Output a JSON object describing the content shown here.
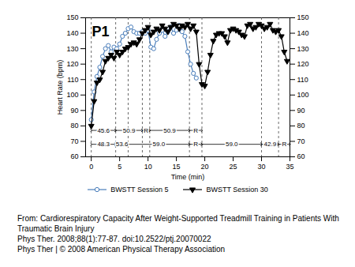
{
  "chart_data": {
    "type": "line",
    "panel_label": "P1",
    "xlabel": "Time (min)",
    "ylabel": "Heart Rate (bpm)",
    "xlim": [
      -1,
      35
    ],
    "xticks": [
      0,
      5,
      10,
      15,
      20,
      25,
      30,
      35
    ],
    "ylim": [
      60,
      150
    ],
    "yticks": [
      60,
      70,
      80,
      90,
      100,
      110,
      120,
      130,
      140,
      150
    ],
    "grid": false,
    "legend": "bottom",
    "series": [
      {
        "name": "BWSTT Session 5",
        "color": "#4a7ebb",
        "marker": "circle",
        "x": [
          0,
          0.5,
          1,
          1.5,
          2,
          2.5,
          3,
          3.5,
          4,
          4.5,
          5,
          5.5,
          6,
          6.5,
          7,
          7.5,
          8,
          8.5,
          9,
          9.5,
          10,
          10.5,
          11,
          11.5,
          12,
          12.5,
          13,
          13.5,
          14,
          14.5,
          15,
          15.5,
          16,
          16.5,
          17,
          17.5,
          18,
          18.5
        ],
        "values": [
          84,
          102,
          112,
          118,
          125,
          130,
          132,
          128,
          131,
          130,
          133,
          138,
          140,
          143,
          144,
          141,
          140,
          140,
          141,
          140,
          142,
          131,
          130,
          136,
          140,
          142,
          138,
          141,
          144,
          140,
          142,
          145,
          141,
          138,
          128,
          120,
          114,
          111
        ]
      },
      {
        "name": "BWSTT Session 30",
        "color": "#000000",
        "marker": "triangle-down",
        "x": [
          0,
          0.5,
          1,
          1.5,
          2,
          2.5,
          3,
          3.5,
          4,
          4.5,
          5,
          5.5,
          6,
          6.5,
          7,
          7.5,
          8,
          8.5,
          9,
          9.5,
          10,
          10.5,
          11,
          11.5,
          12,
          12.5,
          13,
          13.5,
          14,
          14.5,
          15,
          15.5,
          16,
          16.5,
          17,
          17.5,
          18,
          18.5,
          19,
          19.5,
          20,
          20.5,
          21,
          21.5,
          22,
          22.5,
          23,
          23.5,
          24,
          24.5,
          25,
          25.5,
          26,
          26.5,
          27,
          27.5,
          28,
          28.5,
          29,
          29.5,
          30,
          30.5,
          31,
          31.5,
          32,
          32.5,
          33,
          33.5,
          34,
          34.5
        ],
        "values": [
          80,
          96,
          108,
          110,
          115,
          122,
          124,
          126,
          124,
          128,
          126,
          128,
          130,
          131,
          133,
          134,
          133,
          136,
          140,
          142,
          144,
          139,
          141,
          143,
          142,
          145,
          143,
          141,
          144,
          146,
          145,
          143,
          145,
          144,
          146,
          143,
          145,
          141,
          120,
          107,
          106,
          115,
          126,
          135,
          139,
          140,
          140,
          138,
          134,
          142,
          143,
          142,
          141,
          139,
          138,
          145,
          146,
          143,
          144,
          146,
          145,
          143,
          144,
          146,
          142,
          141,
          142,
          138,
          128,
          122
        ]
      }
    ],
    "phases": [
      {
        "series": "BWSTT Session 5",
        "start": 0,
        "end": 4.3,
        "value": 45.6
      },
      {
        "series": "BWSTT Session 5",
        "start": 4.3,
        "end": 9,
        "value": 50.9
      },
      {
        "series": "BWSTT Session 5",
        "start": 9,
        "end": 10.3,
        "label": "R"
      },
      {
        "series": "BWSTT Session 5",
        "start": 10.3,
        "end": 17.3,
        "value": 50.9
      },
      {
        "series": "BWSTT Session 5",
        "start": 17.3,
        "end": 19.5,
        "label": "R"
      },
      {
        "series": "BWSTT Session 30",
        "start": 0,
        "end": 4.3,
        "value": 48.3
      },
      {
        "series": "BWSTT Session 30",
        "start": 4.3,
        "end": 6.5,
        "value": 53.6
      },
      {
        "series": "BWSTT Session 30",
        "start": 6.5,
        "end": 17.3,
        "value": 59,
        "label": "59.0"
      },
      {
        "series": "BWSTT Session 30",
        "start": 17.3,
        "end": 19.5,
        "label": "R"
      },
      {
        "series": "BWSTT Session 30",
        "start": 19.5,
        "end": 30,
        "value": 59,
        "label": "59.0"
      },
      {
        "series": "BWSTT Session 30",
        "start": 30,
        "end": 33,
        "value": 42.9
      },
      {
        "series": "BWSTT Session 30",
        "start": 33,
        "end": 35,
        "label": "R"
      }
    ],
    "caption": [
      "From: Cardiorespiratory Capacity After Weight-Supported Treadmill Training in Patients With Traumatic Brain Injury",
      "Phys Ther. 2008;88(1):77-87. doi:10.2522/ptj.20070022",
      "Phys Ther | © 2008 American Physical Therapy Association"
    ]
  }
}
